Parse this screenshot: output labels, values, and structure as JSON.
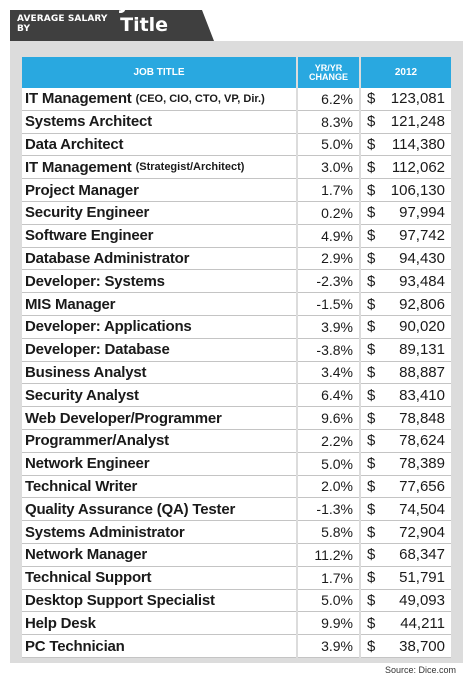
{
  "banner": {
    "small": "AVERAGE SALARY BY",
    "big": "Job Title"
  },
  "headers": {
    "title": "JOB TITLE",
    "change_line1": "YR/YR",
    "change_line2": "CHANGE",
    "year": "2012"
  },
  "rows": [
    {
      "title": "IT Management",
      "sub": "(CEO, CIO, CTO, VP, Dir.)",
      "change": "6.2%",
      "currency": "$",
      "salary": "123,081"
    },
    {
      "title": "Systems Architect",
      "sub": "",
      "change": "8.3%",
      "currency": "$",
      "salary": "121,248"
    },
    {
      "title": "Data Architect",
      "sub": "",
      "change": "5.0%",
      "currency": "$",
      "salary": "114,380"
    },
    {
      "title": "IT Management",
      "sub": "(Strategist/Architect)",
      "change": "3.0%",
      "currency": "$",
      "salary": "112,062"
    },
    {
      "title": "Project Manager",
      "sub": "",
      "change": "1.7%",
      "currency": "$",
      "salary": "106,130"
    },
    {
      "title": "Security Engineer",
      "sub": "",
      "change": "0.2%",
      "currency": "$",
      "salary": "97,994"
    },
    {
      "title": "Software Engineer",
      "sub": "",
      "change": "4.9%",
      "currency": "$",
      "salary": "97,742"
    },
    {
      "title": "Database Administrator",
      "sub": "",
      "change": "2.9%",
      "currency": "$",
      "salary": "94,430"
    },
    {
      "title": "Developer: Systems",
      "sub": "",
      "change": "-2.3%",
      "currency": "$",
      "salary": "93,484"
    },
    {
      "title": "MIS Manager",
      "sub": "",
      "change": "-1.5%",
      "currency": "$",
      "salary": "92,806"
    },
    {
      "title": "Developer: Applications",
      "sub": "",
      "change": "3.9%",
      "currency": "$",
      "salary": "90,020"
    },
    {
      "title": "Developer: Database",
      "sub": "",
      "change": "-3.8%",
      "currency": "$",
      "salary": "89,131"
    },
    {
      "title": "Business Analyst",
      "sub": "",
      "change": "3.4%",
      "currency": "$",
      "salary": "88,887"
    },
    {
      "title": "Security Analyst",
      "sub": "",
      "change": "6.4%",
      "currency": "$",
      "salary": "83,410"
    },
    {
      "title": "Web Developer/Programmer",
      "sub": "",
      "change": "9.6%",
      "currency": "$",
      "salary": "78,848"
    },
    {
      "title": "Programmer/Analyst",
      "sub": "",
      "change": "2.2%",
      "currency": "$",
      "salary": "78,624"
    },
    {
      "title": "Network Engineer",
      "sub": "",
      "change": "5.0%",
      "currency": "$",
      "salary": "78,389"
    },
    {
      "title": "Technical Writer",
      "sub": "",
      "change": "2.0%",
      "currency": "$",
      "salary": "77,656"
    },
    {
      "title": "Quality Assurance (QA) Tester",
      "sub": "",
      "change": "-1.3%",
      "currency": "$",
      "salary": "74,504"
    },
    {
      "title": "Systems Administrator",
      "sub": "",
      "change": "5.8%",
      "currency": "$",
      "salary": "72,904"
    },
    {
      "title": "Network Manager",
      "sub": "",
      "change": "11.2%",
      "currency": "$",
      "salary": "68,347"
    },
    {
      "title": "Technical Support",
      "sub": "",
      "change": "1.7%",
      "currency": "$",
      "salary": "51,791"
    },
    {
      "title": "Desktop Support Specialist",
      "sub": "",
      "change": "5.0%",
      "currency": "$",
      "salary": "49,093"
    },
    {
      "title": "Help Desk",
      "sub": "",
      "change": "9.9%",
      "currency": "$",
      "salary": "44,211"
    },
    {
      "title": "PC Technician",
      "sub": "",
      "change": "3.9%",
      "currency": "$",
      "salary": "38,700"
    }
  ],
  "source": "Source: Dice.com",
  "colors": {
    "header_blue": "#29a8e0",
    "banner_dark": "#3f3f3f",
    "panel_gray": "#dcdcdc"
  }
}
